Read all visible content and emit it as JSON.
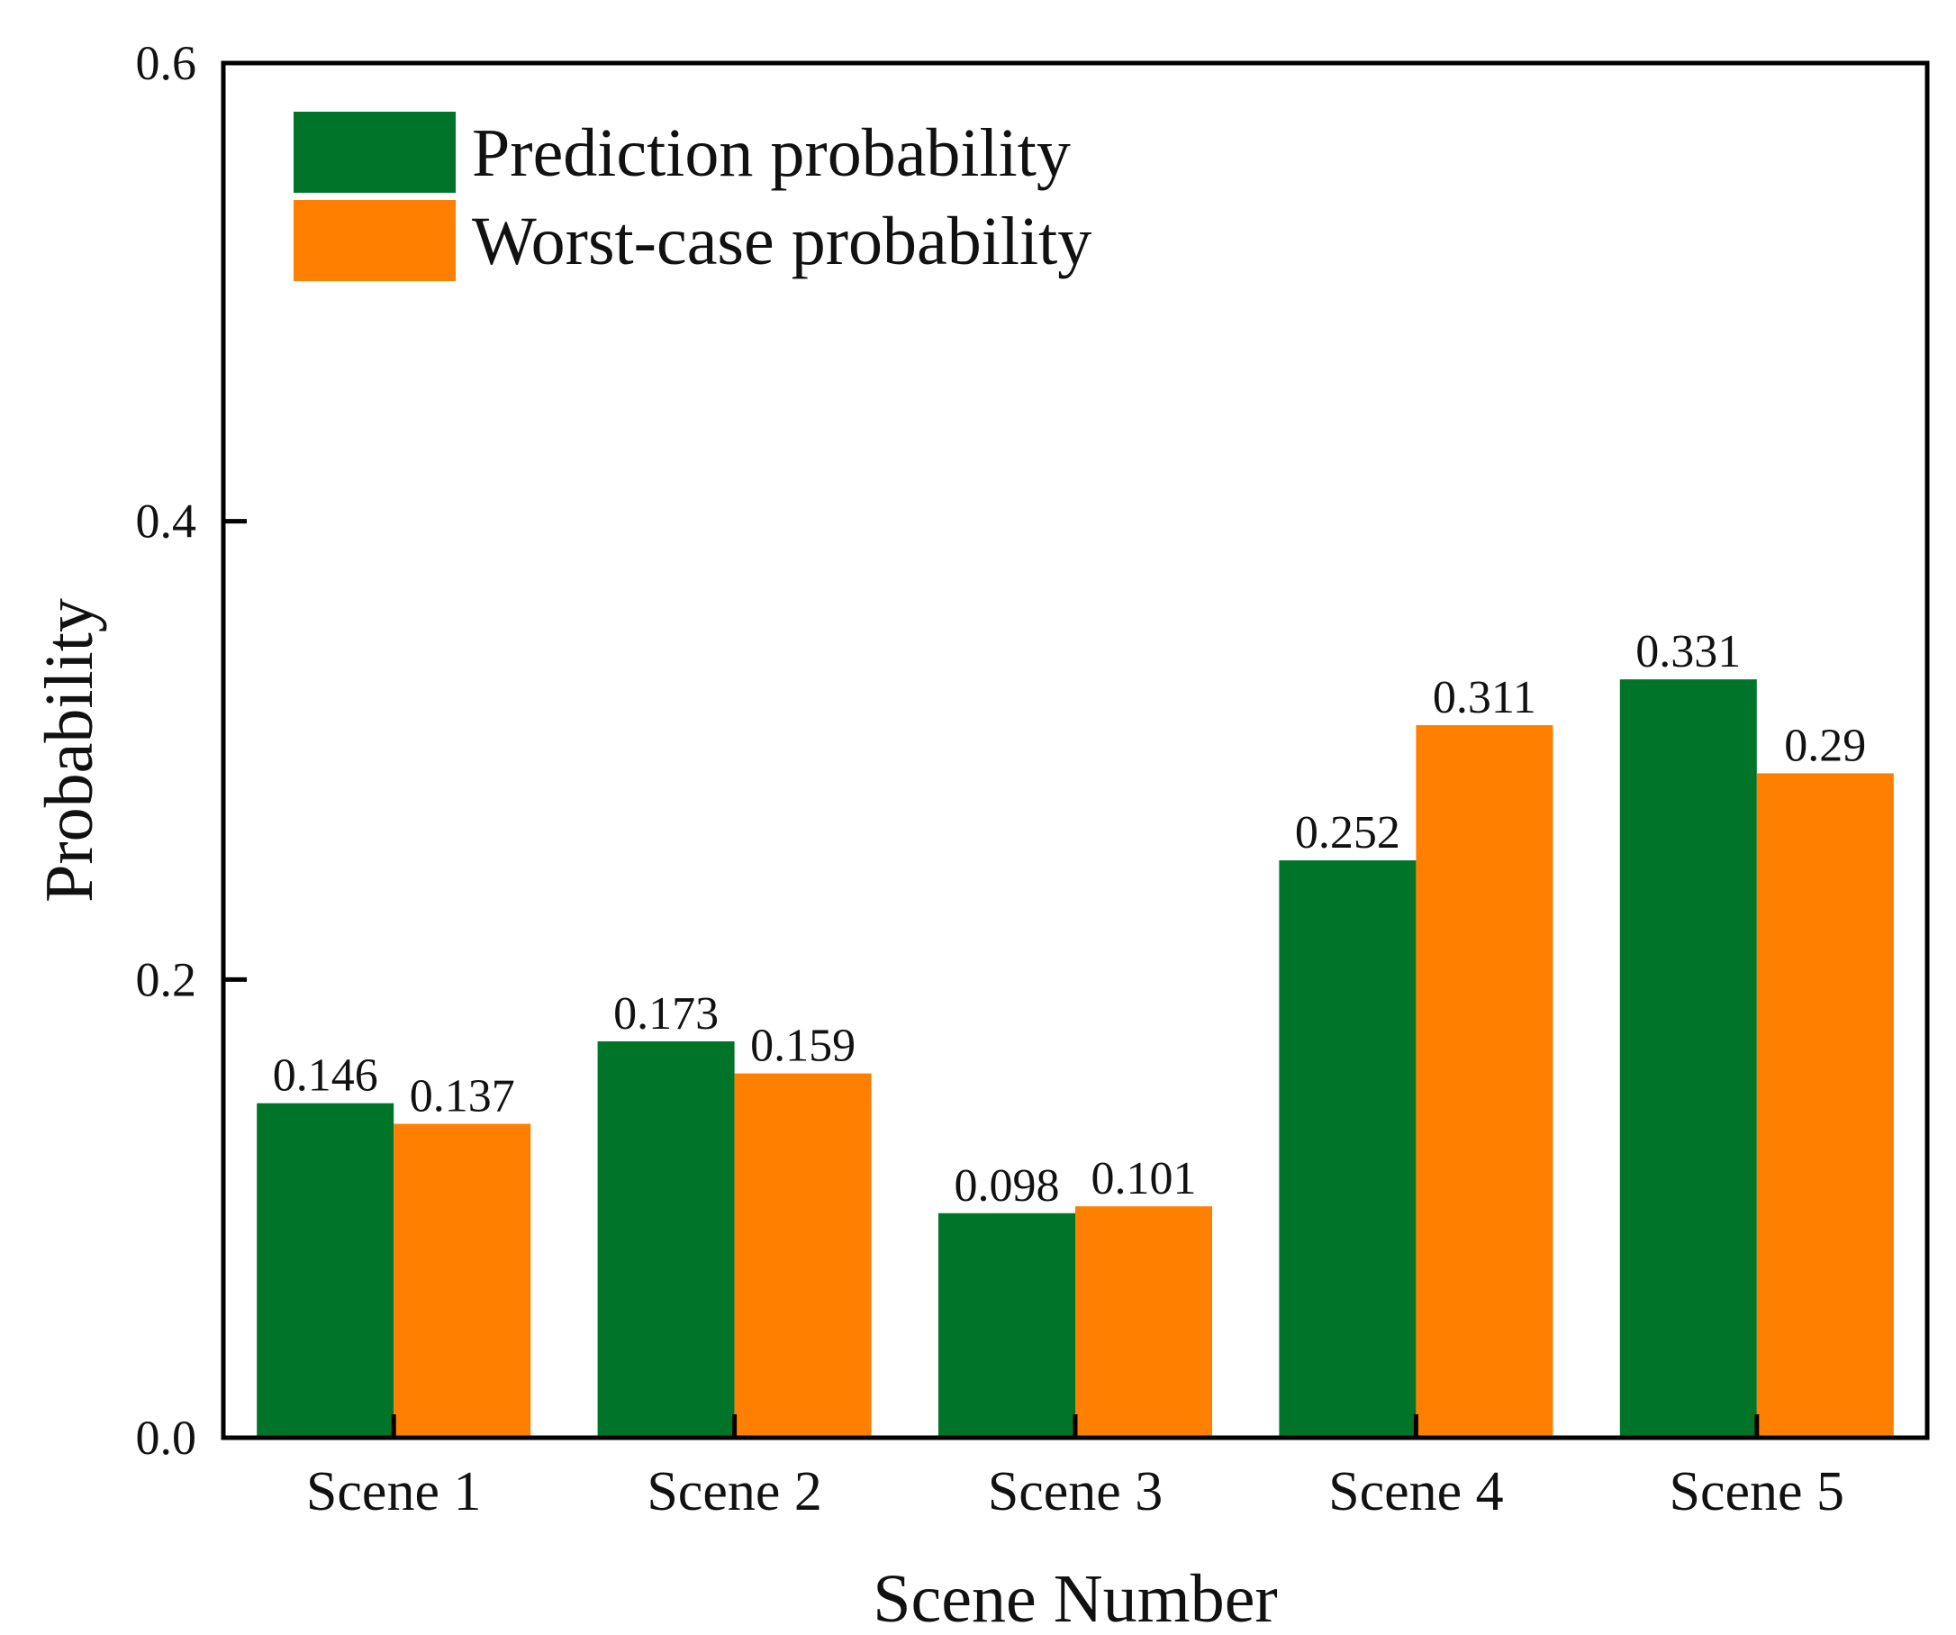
{
  "chart_data": {
    "type": "bar",
    "title": "",
    "xlabel": "Scene Number",
    "ylabel": "Probability",
    "ylim": [
      0,
      0.6
    ],
    "yticks": [
      "0.0",
      "0.2",
      "0.4",
      "0.6"
    ],
    "yticks_values": [
      0,
      0.2,
      0.4,
      0.6
    ],
    "grid": false,
    "legend_position": "top-left",
    "categories": [
      "Scene 1",
      "Scene 2",
      "Scene 3",
      "Scene 4",
      "Scene 5"
    ],
    "series": [
      {
        "name": "Prediction probability",
        "color": "#00752a",
        "values": [
          0.146,
          0.173,
          0.098,
          0.252,
          0.331
        ],
        "labels": [
          "0.146",
          "0.173",
          "0.098",
          "0.252",
          "0.331"
        ]
      },
      {
        "name": "Worst-case probability",
        "color": "#ff7f00",
        "values": [
          0.137,
          0.159,
          0.101,
          0.311,
          0.29
        ],
        "labels": [
          "0.137",
          "0.159",
          "0.101",
          "0.311",
          "0.29"
        ]
      }
    ]
  }
}
